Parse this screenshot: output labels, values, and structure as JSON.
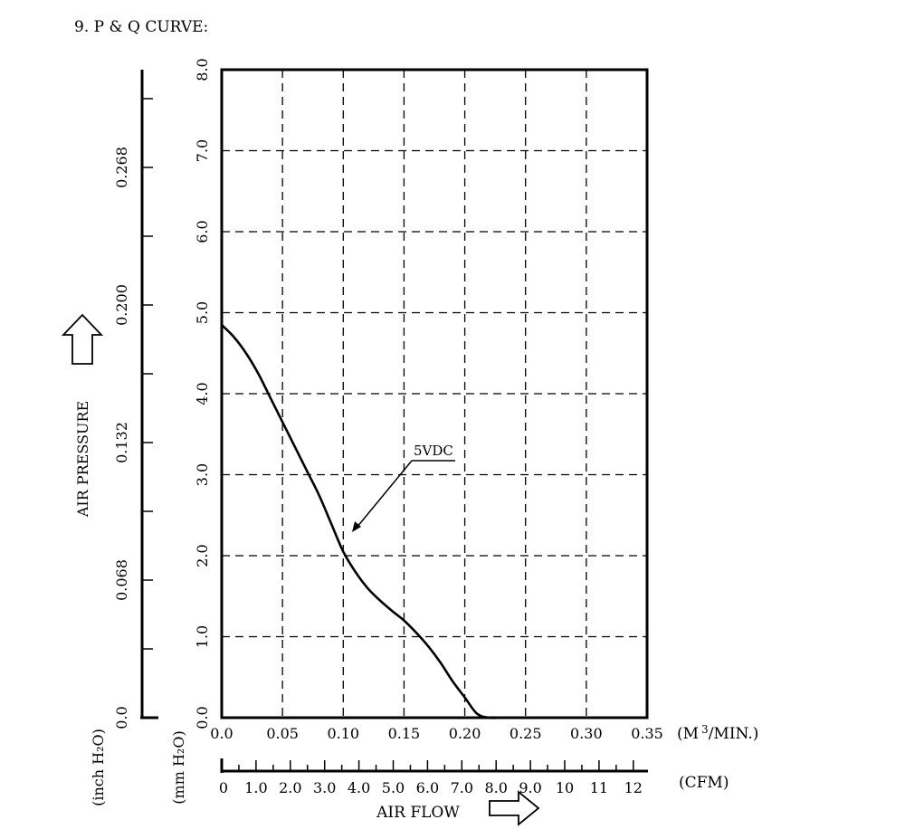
{
  "chart_data": {
    "type": "line",
    "title": "9. P & Q CURVE:",
    "xlabel": "AIR FLOW",
    "x_unit": "(M³/MIN.)",
    "x_unit_base": "(M",
    "x_unit_sup": "3",
    "x_unit_tail": "/MIN.)",
    "x_ticks": [
      "0.0",
      "0.05",
      "0.10",
      "0.15",
      "0.20",
      "0.25",
      "0.30",
      "0.35"
    ],
    "xlim": [
      0,
      0.35
    ],
    "x2_unit": "(CFM)",
    "x2_ticks": [
      "0",
      "1.0",
      "2.0",
      "3.0",
      "4.0",
      "5.0",
      "6.0",
      "7.0",
      "8.0",
      "9.0",
      "10",
      "11",
      "12"
    ],
    "ylabel": "AIR PRESSURE",
    "y_unit": "(mm H₂O)",
    "y_ticks": [
      "0.0",
      "1.0",
      "2.0",
      "3.0",
      "4.0",
      "5.0",
      "6.0",
      "7.0",
      "8.0"
    ],
    "ylim": [
      0,
      8
    ],
    "y2_unit": "(inch H₂O)",
    "y2_ticks": [
      "0.0",
      "0.068",
      "0.132",
      "0.200",
      "0.268"
    ],
    "grid": true,
    "series": [
      {
        "name": "5VDC",
        "x": [
          0.0,
          0.01,
          0.02,
          0.03,
          0.04,
          0.05,
          0.06,
          0.07,
          0.08,
          0.09,
          0.1,
          0.11,
          0.12,
          0.13,
          0.14,
          0.15,
          0.16,
          0.17,
          0.18,
          0.19,
          0.2,
          0.21,
          0.22,
          0.23
        ],
        "y": [
          4.85,
          4.7,
          4.5,
          4.25,
          3.95,
          3.65,
          3.35,
          3.05,
          2.75,
          2.4,
          2.05,
          1.8,
          1.6,
          1.45,
          1.32,
          1.2,
          1.05,
          0.88,
          0.68,
          0.45,
          0.25,
          0.05,
          0.0,
          0.0
        ]
      }
    ],
    "annotation": "5VDC"
  }
}
